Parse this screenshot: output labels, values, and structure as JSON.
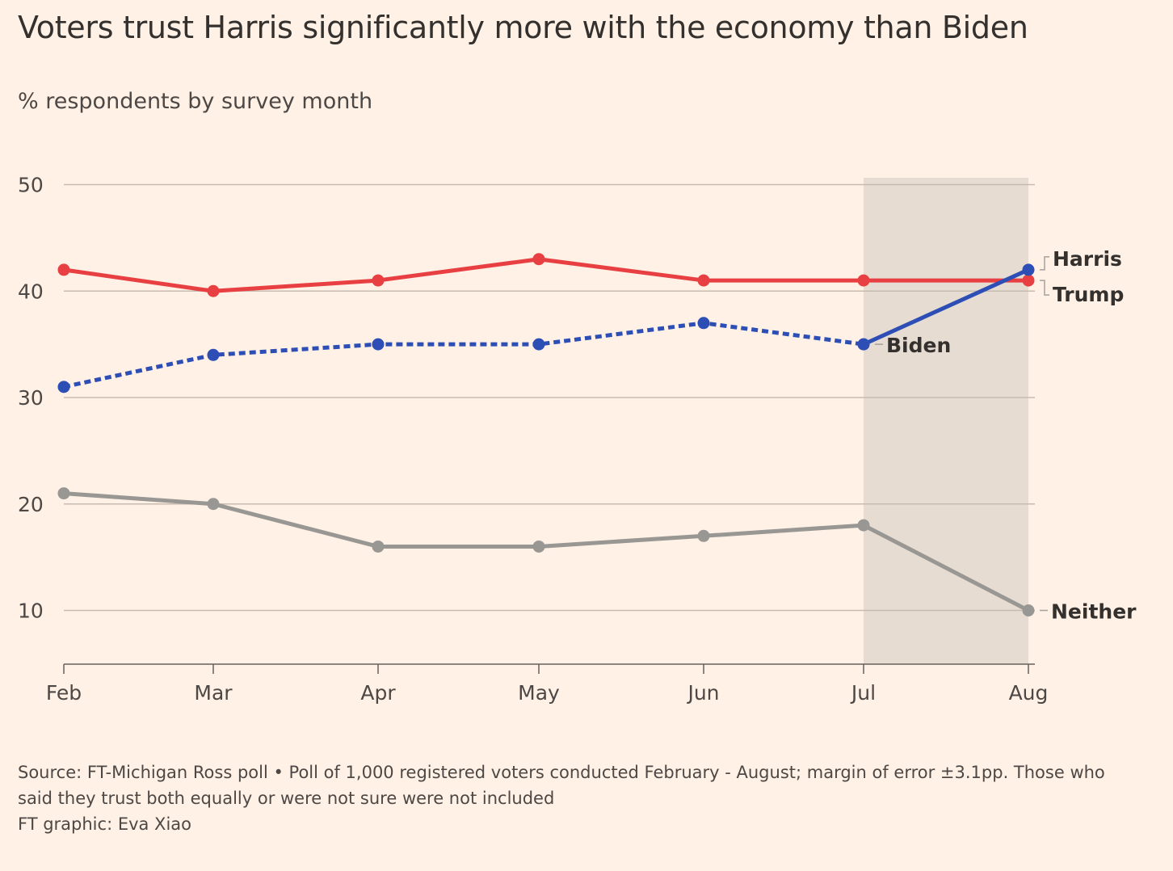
{
  "title": "Voters trust Harris significantly more with the economy than Biden",
  "subtitle": "% respondents by survey month",
  "footer": {
    "line1": "Source: FT-Michigan Ross poll • Poll of 1,000 registered voters conducted February - August; margin of error ±3.1pp. Those who",
    "line2": "said they trust both equally or were not sure were not included",
    "line3": "FT graphic: Eva Xiao"
  },
  "chart_data": {
    "type": "line",
    "categories": [
      "Feb",
      "Mar",
      "Apr",
      "May",
      "Jun",
      "Jul",
      "Aug"
    ],
    "ylim": [
      5,
      50
    ],
    "yticks": [
      10,
      20,
      30,
      40,
      50
    ],
    "grid": true,
    "highlight_range": [
      "Jul",
      "Aug"
    ],
    "series": [
      {
        "name": "Trump",
        "color": "#e84042",
        "dashed": false,
        "values": [
          42,
          40,
          41,
          43,
          41,
          41,
          41
        ]
      },
      {
        "name": "Biden",
        "color": "#2d4fb5",
        "dashed": true,
        "values": [
          31,
          34,
          35,
          35,
          37,
          35,
          null
        ]
      },
      {
        "name": "Harris",
        "color": "#2d4fb5",
        "dashed": false,
        "values": [
          null,
          null,
          null,
          null,
          null,
          35,
          42
        ]
      },
      {
        "name": "Neither",
        "color": "#999794",
        "dashed": false,
        "values": [
          21,
          20,
          16,
          16,
          17,
          18,
          10
        ]
      }
    ]
  }
}
